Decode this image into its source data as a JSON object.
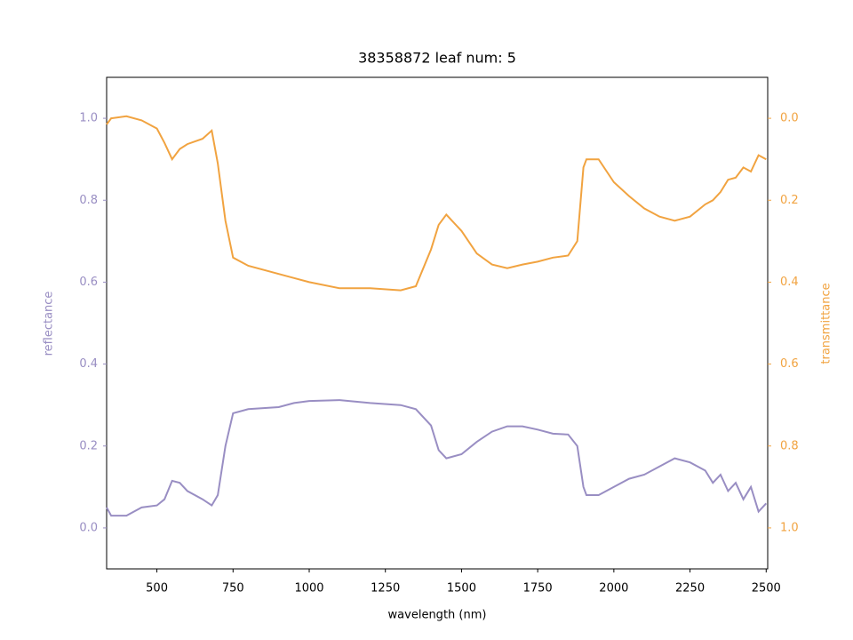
{
  "chart_data": {
    "type": "line",
    "title": "38358872 leaf num: 5",
    "xlabel": "wavelength (nm)",
    "ylabel": "reflectance",
    "y2label": "transmittance",
    "x": [
      335,
      350,
      400,
      450,
      500,
      525,
      550,
      575,
      600,
      650,
      680,
      700,
      725,
      750,
      800,
      900,
      950,
      1000,
      1100,
      1200,
      1300,
      1350,
      1400,
      1425,
      1450,
      1500,
      1550,
      1600,
      1650,
      1700,
      1750,
      1800,
      1850,
      1880,
      1900,
      1910,
      1950,
      2000,
      2050,
      2100,
      2150,
      2200,
      2250,
      2300,
      2325,
      2350,
      2375,
      2400,
      2425,
      2450,
      2475,
      2500
    ],
    "series": [
      {
        "name": "reflectance",
        "color": "#998ec3",
        "values": [
          0.05,
          0.03,
          0.03,
          0.05,
          0.055,
          0.07,
          0.115,
          0.11,
          0.09,
          0.07,
          0.055,
          0.08,
          0.2,
          0.28,
          0.29,
          0.295,
          0.305,
          0.31,
          0.312,
          0.305,
          0.3,
          0.29,
          0.25,
          0.19,
          0.17,
          0.18,
          0.21,
          0.235,
          0.248,
          0.248,
          0.24,
          0.23,
          0.228,
          0.2,
          0.1,
          0.08,
          0.08,
          0.1,
          0.12,
          0.13,
          0.15,
          0.17,
          0.16,
          0.14,
          0.11,
          0.13,
          0.09,
          0.11,
          0.07,
          0.1,
          0.04,
          0.06
        ]
      },
      {
        "name": "transmittance",
        "color": "#f1a340",
        "axis": "y2",
        "values": [
          0.015,
          0.0,
          -0.005,
          0.005,
          0.025,
          0.06,
          0.1,
          0.075,
          0.063,
          0.05,
          0.03,
          0.11,
          0.25,
          0.34,
          0.36,
          0.38,
          0.39,
          0.4,
          0.415,
          0.415,
          0.42,
          0.41,
          0.32,
          0.26,
          0.235,
          0.275,
          0.33,
          0.357,
          0.366,
          0.357,
          0.35,
          0.34,
          0.335,
          0.3,
          0.12,
          0.1,
          0.1,
          0.156,
          0.19,
          0.22,
          0.24,
          0.25,
          0.24,
          0.21,
          0.2,
          0.18,
          0.15,
          0.145,
          0.12,
          0.13,
          0.09,
          0.1
        ]
      }
    ],
    "xlim": [
      335,
      2505
    ],
    "xticks": [
      500,
      750,
      1000,
      1250,
      1500,
      1750,
      2000,
      2250,
      2500
    ],
    "ylim": [
      -0.1,
      1.1
    ],
    "yticks": [
      {
        "value": 0,
        "label": "0.0"
      },
      {
        "value": 0.2,
        "label": "0.2"
      },
      {
        "value": 0.4,
        "label": "0.4"
      },
      {
        "value": 0.6,
        "label": "0.6"
      },
      {
        "value": 0.8,
        "label": "0.8"
      },
      {
        "value": 1,
        "label": "1.0"
      }
    ],
    "y2lim": [
      1.1,
      -0.1
    ],
    "y2ticks": [
      {
        "value": 0,
        "label": "0.0"
      },
      {
        "value": 0.2,
        "label": "0.2"
      },
      {
        "value": 0.4,
        "label": "0.4"
      },
      {
        "value": 0.6,
        "label": "0.6"
      },
      {
        "value": 0.8,
        "label": "0.8"
      },
      {
        "value": 1,
        "label": "1.0"
      }
    ]
  }
}
